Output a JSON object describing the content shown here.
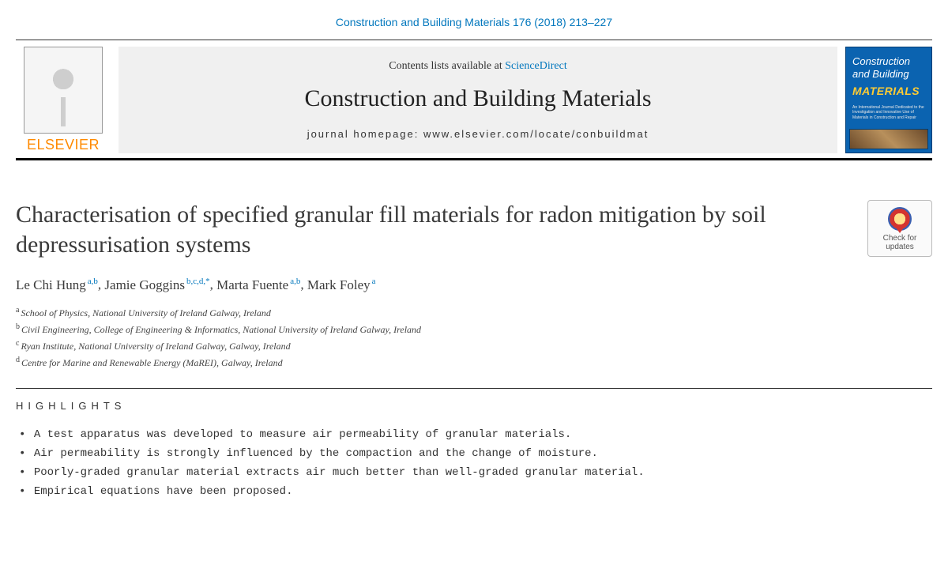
{
  "journal_ref": "Construction and Building Materials 176 (2018) 213–227",
  "banner": {
    "contents_prefix": "Contents lists available at ",
    "sciencedirect": "ScienceDirect",
    "journal_name": "Construction and Building Materials",
    "homepage_label": "journal homepage: www.elsevier.com/locate/conbuildmat"
  },
  "publisher_logo_text": "ELSEVIER",
  "cover": {
    "line1": "Construction",
    "line2": "and Building",
    "line3": "MATERIALS",
    "subtitle": "An International Journal Dedicated to the Investigation and Innovative Use of Materials in Construction and Repair"
  },
  "check_updates": {
    "line1": "Check for",
    "line2": "updates"
  },
  "title": "Characterisation of specified granular fill materials for radon mitigation by soil depressurisation systems",
  "authors": [
    {
      "name": "Le Chi Hung",
      "aff": "a,b"
    },
    {
      "name": "Jamie Goggins",
      "aff": "b,c,d,*"
    },
    {
      "name": "Marta Fuente",
      "aff": "a,b"
    },
    {
      "name": "Mark Foley",
      "aff": "a"
    }
  ],
  "affiliations": [
    {
      "key": "a",
      "text": "School of Physics, National University of Ireland Galway, Ireland"
    },
    {
      "key": "b",
      "text": "Civil Engineering, College of Engineering & Informatics, National University of Ireland Galway, Ireland"
    },
    {
      "key": "c",
      "text": "Ryan Institute, National University of Ireland Galway, Galway, Ireland"
    },
    {
      "key": "d",
      "text": "Centre for Marine and Renewable Energy (MaREI), Galway, Ireland"
    }
  ],
  "highlights_heading": "HIGHLIGHTS",
  "highlights": [
    "A test apparatus was developed to measure air permeability of granular materials.",
    "Air permeability is strongly influenced by the compaction and the change of moisture.",
    "Poorly-graded granular material extracts air much better than well-graded granular material.",
    "Empirical equations have been proposed."
  ],
  "colors": {
    "link": "#0277bd",
    "elsevier_orange": "#ff8a00",
    "cover_bg": "#0b63b0",
    "cover_accent": "#ffcc33"
  }
}
